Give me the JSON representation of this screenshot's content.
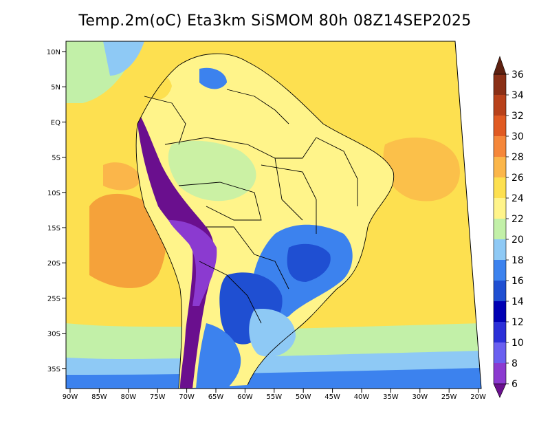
{
  "title": "Temp.2m(oC) Eta3km SiSMOM 80h 08Z14SEP2025",
  "lat_ticks": [
    "10N",
    "5N",
    "EQ",
    "5S",
    "10S",
    "15S",
    "20S",
    "25S",
    "30S",
    "35S"
  ],
  "lon_ticks": [
    "90W",
    "85W",
    "80W",
    "75W",
    "70W",
    "65W",
    "60W",
    "55W",
    "50W",
    "45W",
    "40W",
    "35W",
    "30W",
    "25W",
    "20W"
  ],
  "colorbar": {
    "labels": [
      "6",
      "8",
      "10",
      "12",
      "14",
      "16",
      "18",
      "20",
      "22",
      "24",
      "26",
      "28",
      "30",
      "32",
      "34",
      "36"
    ],
    "colors": [
      "#6a0f8e",
      "#8b3ad0",
      "#6a5ff0",
      "#2b2fd8",
      "#0000b4",
      "#1f4fd2",
      "#3c82ee",
      "#8ec9f5",
      "#c2f0a8",
      "#fff48a",
      "#fde050",
      "#fbb64a",
      "#f5873a",
      "#e05a22",
      "#b8411a",
      "#8a2f16",
      "#5e2010"
    ]
  }
}
